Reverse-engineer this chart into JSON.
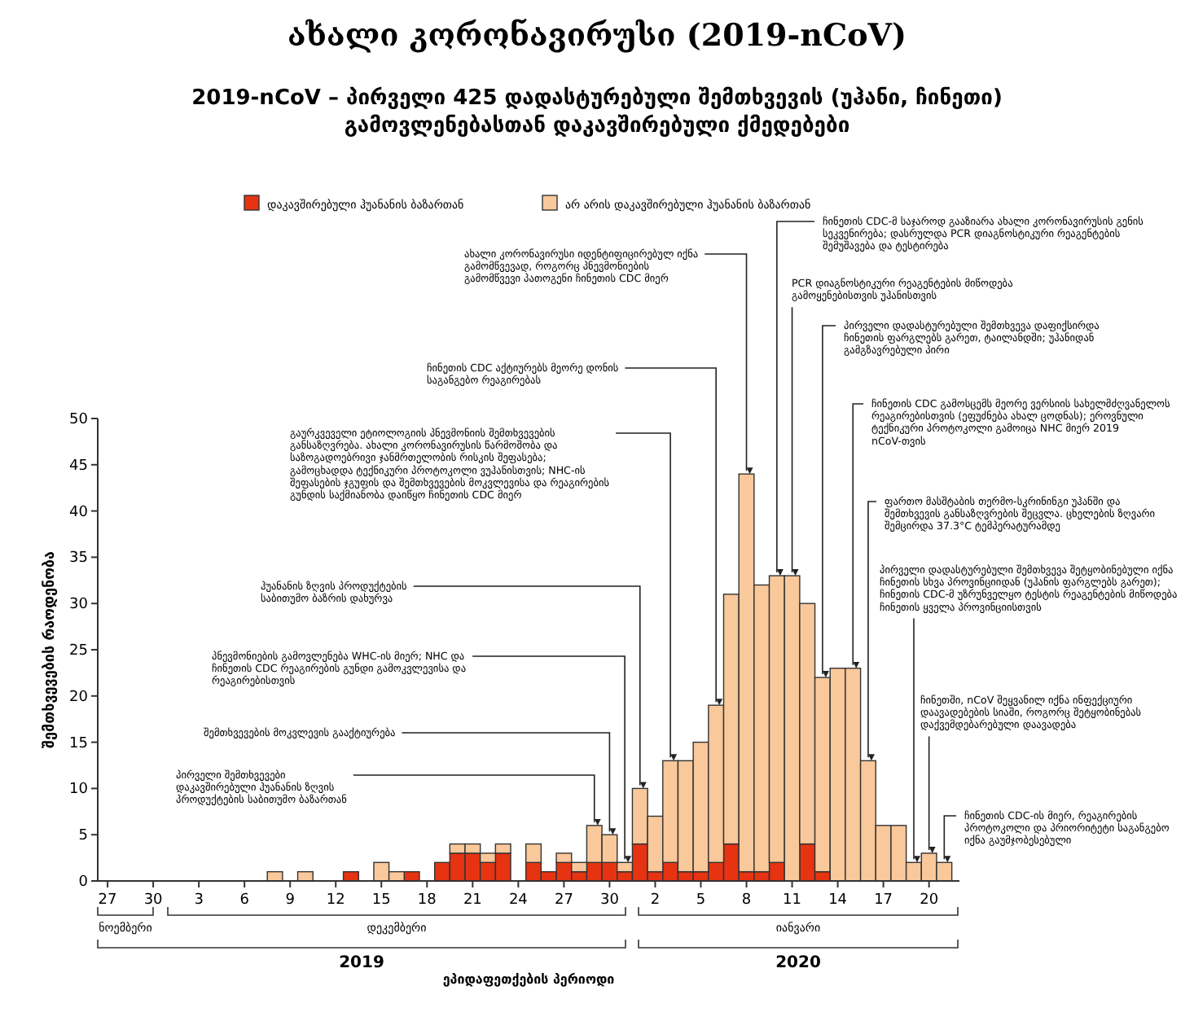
{
  "chart_data": {
    "type": "bar",
    "stacked": true,
    "title": "ახალი კორონავირუსი (2019-nCoV)",
    "subtitle": "2019-nCoV – პირველი 425 დადასტურებული შემთხვევის (უჰანი, ჩინეთი) გამოვლენებასთან დაკავშირებული ქმედებები",
    "xlabel": "ეპიდაფეთქების პერიოდი",
    "ylabel": "შემთხვევების რაოდენობა",
    "legend": "top",
    "x": [
      "2019-12-08",
      "2019-12-10",
      "2019-12-13",
      "2019-12-15",
      "2019-12-16",
      "2019-12-17",
      "2019-12-19",
      "2019-12-20",
      "2019-12-21",
      "2019-12-22",
      "2019-12-23",
      "2019-12-25",
      "2019-12-26",
      "2019-12-27",
      "2019-12-28",
      "2019-12-29",
      "2019-12-30",
      "2019-12-31",
      "2020-01-01",
      "2020-01-02",
      "2020-01-03",
      "2020-01-04",
      "2020-01-05",
      "2020-01-06",
      "2020-01-07",
      "2020-01-08",
      "2020-01-09",
      "2020-01-10",
      "2020-01-11",
      "2020-01-12",
      "2020-01-13",
      "2020-01-14",
      "2020-01-15",
      "2020-01-16",
      "2020-01-17",
      "2020-01-18",
      "2020-01-19",
      "2020-01-20",
      "2020-01-21"
    ],
    "series": [
      {
        "name": "დაკავშირებული ჰუანანის ბაზართან",
        "color": "#e63312",
        "values": [
          null,
          null,
          1,
          null,
          null,
          1,
          2,
          3,
          3,
          2,
          3,
          2,
          1,
          2,
          1,
          2,
          2,
          1,
          4,
          1,
          2,
          1,
          1,
          2,
          4,
          1,
          1,
          2,
          null,
          4,
          1,
          null,
          null,
          null,
          null,
          null,
          null,
          null,
          null
        ]
      },
      {
        "name": "არ არის დაკავშირებული ჰუანანის ბაზართან",
        "color": "#f9c89b",
        "values": [
          1,
          1,
          null,
          2,
          1,
          null,
          null,
          1,
          1,
          1,
          1,
          2,
          null,
          1,
          1,
          4,
          3,
          1,
          6,
          6,
          11,
          12,
          14,
          17,
          27,
          43,
          31,
          31,
          33,
          26,
          21,
          23,
          23,
          13,
          6,
          6,
          2,
          3,
          2
        ]
      }
    ],
    "xlim": [
      "2019-11-26",
      "2020-01-22"
    ],
    "xticks": [
      {
        "value": "2019-11-27",
        "label": "27"
      },
      {
        "value": "2019-11-30",
        "label": "30"
      },
      {
        "value": "2019-12-03",
        "label": "3"
      },
      {
        "value": "2019-12-06",
        "label": "6"
      },
      {
        "value": "2019-12-09",
        "label": "9"
      },
      {
        "value": "2019-12-12",
        "label": "12"
      },
      {
        "value": "2019-12-15",
        "label": "15"
      },
      {
        "value": "2019-12-18",
        "label": "18"
      },
      {
        "value": "2019-12-21",
        "label": "21"
      },
      {
        "value": "2019-12-24",
        "label": "24"
      },
      {
        "value": "2019-12-27",
        "label": "27"
      },
      {
        "value": "2019-12-30",
        "label": "30"
      },
      {
        "value": "2020-01-02",
        "label": "2"
      },
      {
        "value": "2020-01-05",
        "label": "5"
      },
      {
        "value": "2020-01-08",
        "label": "8"
      },
      {
        "value": "2020-01-11",
        "label": "11"
      },
      {
        "value": "2020-01-14",
        "label": "14"
      },
      {
        "value": "2020-01-17",
        "label": "17"
      },
      {
        "value": "2020-01-20",
        "label": "20"
      }
    ],
    "ylim": [
      0,
      50
    ],
    "yticks": [
      0,
      5,
      10,
      15,
      20,
      25,
      30,
      35,
      40,
      45,
      50
    ],
    "annotations": [
      {
        "text": "პირველი შემთხვევები დაკავშირებული ჰუანანის ზღვის პროდუქტების საბითუმო ბაზართან",
        "x": "2019-12-29",
        "y": 6
      },
      {
        "text": "შემთხვევების მოკვლევის გააქტიურება",
        "x": "2019-12-30",
        "y": 5
      },
      {
        "text": "პნევმონიების გამოვლენება WHC-ის მიერ; NHC და ჩინეთის CDC რეაგირების გუნდი გამოკვლევისა და რეაგირებისთვის",
        "x": "2019-12-31",
        "y": 2
      },
      {
        "text": "ჰუანანის ზღვის პროდუქტების საბითუმო ბაზრის დახურვა",
        "x": "2020-01-01",
        "y": 10
      },
      {
        "text": "გაურკვეველი ეტიოლოგიის პნევმონიის შემთხვევების განსაზღვრება. ახალი კორონავირუსის წარმოშობა და საზოგადოებრივი ჯანმრთელობის რისკის შეფასება; გამოცხადდა ტექნიკური პროტოკოლი ვუჰანისთვის; NHC-ის შეფასების ჯგუფის და შემთხვევების მოკვლევისა და რეაგირების გუნდის საქმიანობა დაიწყო ჩინეთის CDC მიერ",
        "x": "2020-01-03",
        "y": 13
      },
      {
        "text": "ჩინეთის CDC აქტიურებს მეორე დონის საგანგებო რეაგირებას",
        "x": "2020-01-06",
        "y": 19
      },
      {
        "text": "ახალი კორონავირუსი იდენტიფიცირებულ იქნა გამომწვევად, როგორც პნევმონიების გამომწვევი პათოგენი ჩინეთის CDC მიერ",
        "x": "2020-01-08",
        "y": 44
      },
      {
        "text": "ჩინეთის CDC-მ საჯაროდ გააზიარა ახალი კორონავირუსის გენის სეკვენირება; დასრულდა PCR დიაგნოსტიკური რეაგენტების შემუშავება და ტესტირება",
        "x": "2020-01-10",
        "y": 33
      },
      {
        "text": "PCR დიაგნოსტიკური რეაგენტების მიწოდება გამოყენებისთვის უჰანისთვის",
        "x": "2020-01-11",
        "y": 33
      },
      {
        "text": "პირველი დადასტურებული შემთხვევა დაფიქსირდა ჩინეთის ფარგლებს გარეთ, ტაილანდში; უჰანიდან გამგზავრებული პირი",
        "x": "2020-01-13",
        "y": 22
      },
      {
        "text": "ჩინეთის CDC გამოსცემს მეორე ვერსიის სახელმძღვანელოს რეაგირებისთვის (ეფუძნება ახალ ცოდნას); ეროვნული ტექნიკური პროტოკოლი გამოიცა NHC მიერ 2019 nCoV-თვის",
        "x": "2020-01-15",
        "y": 23
      },
      {
        "text": "ფართო მასშტაბის თერმო-სკრინინგი უჰანში და შემთხვევის განსაზღვრების შეცვლა. ცხელების ზღვარი შემცირდა 37.3°C ტემპერატურამდე",
        "x": "2020-01-16",
        "y": 13
      },
      {
        "text": "პირველი დადასტურებული შემთხვევა შეტყობინებული იქნა ჩინეთის სხვა პროვინციიდან (უჰანის ფარგლებს გარეთ); ჩინეთის CDC-მ უზრუნველყო ტესტის რეაგენტების მიწოდება ჩინეთის ყველა პროვინციისთვის",
        "x": "2020-01-19",
        "y": 2
      },
      {
        "text": "ჩინეთში, nCoV შეყვანილ იქნა ინფექციური დაავადებების სიაში, როგორც შეტყობინებას დაქვემდებარებული დაავადება",
        "x": "2020-01-20",
        "y": 3
      },
      {
        "text": "ჩინეთის CDC-ის მიერ, რეაგირების პროტოკოლი და პრიორიტეტი საგანგებო იქნა გაუმჯობესებული",
        "x": "2020-01-21",
        "y": 2
      },
      "ნოემბერი",
      "დეკემბერი",
      "იანვარი",
      "2019",
      "2020"
    ]
  }
}
